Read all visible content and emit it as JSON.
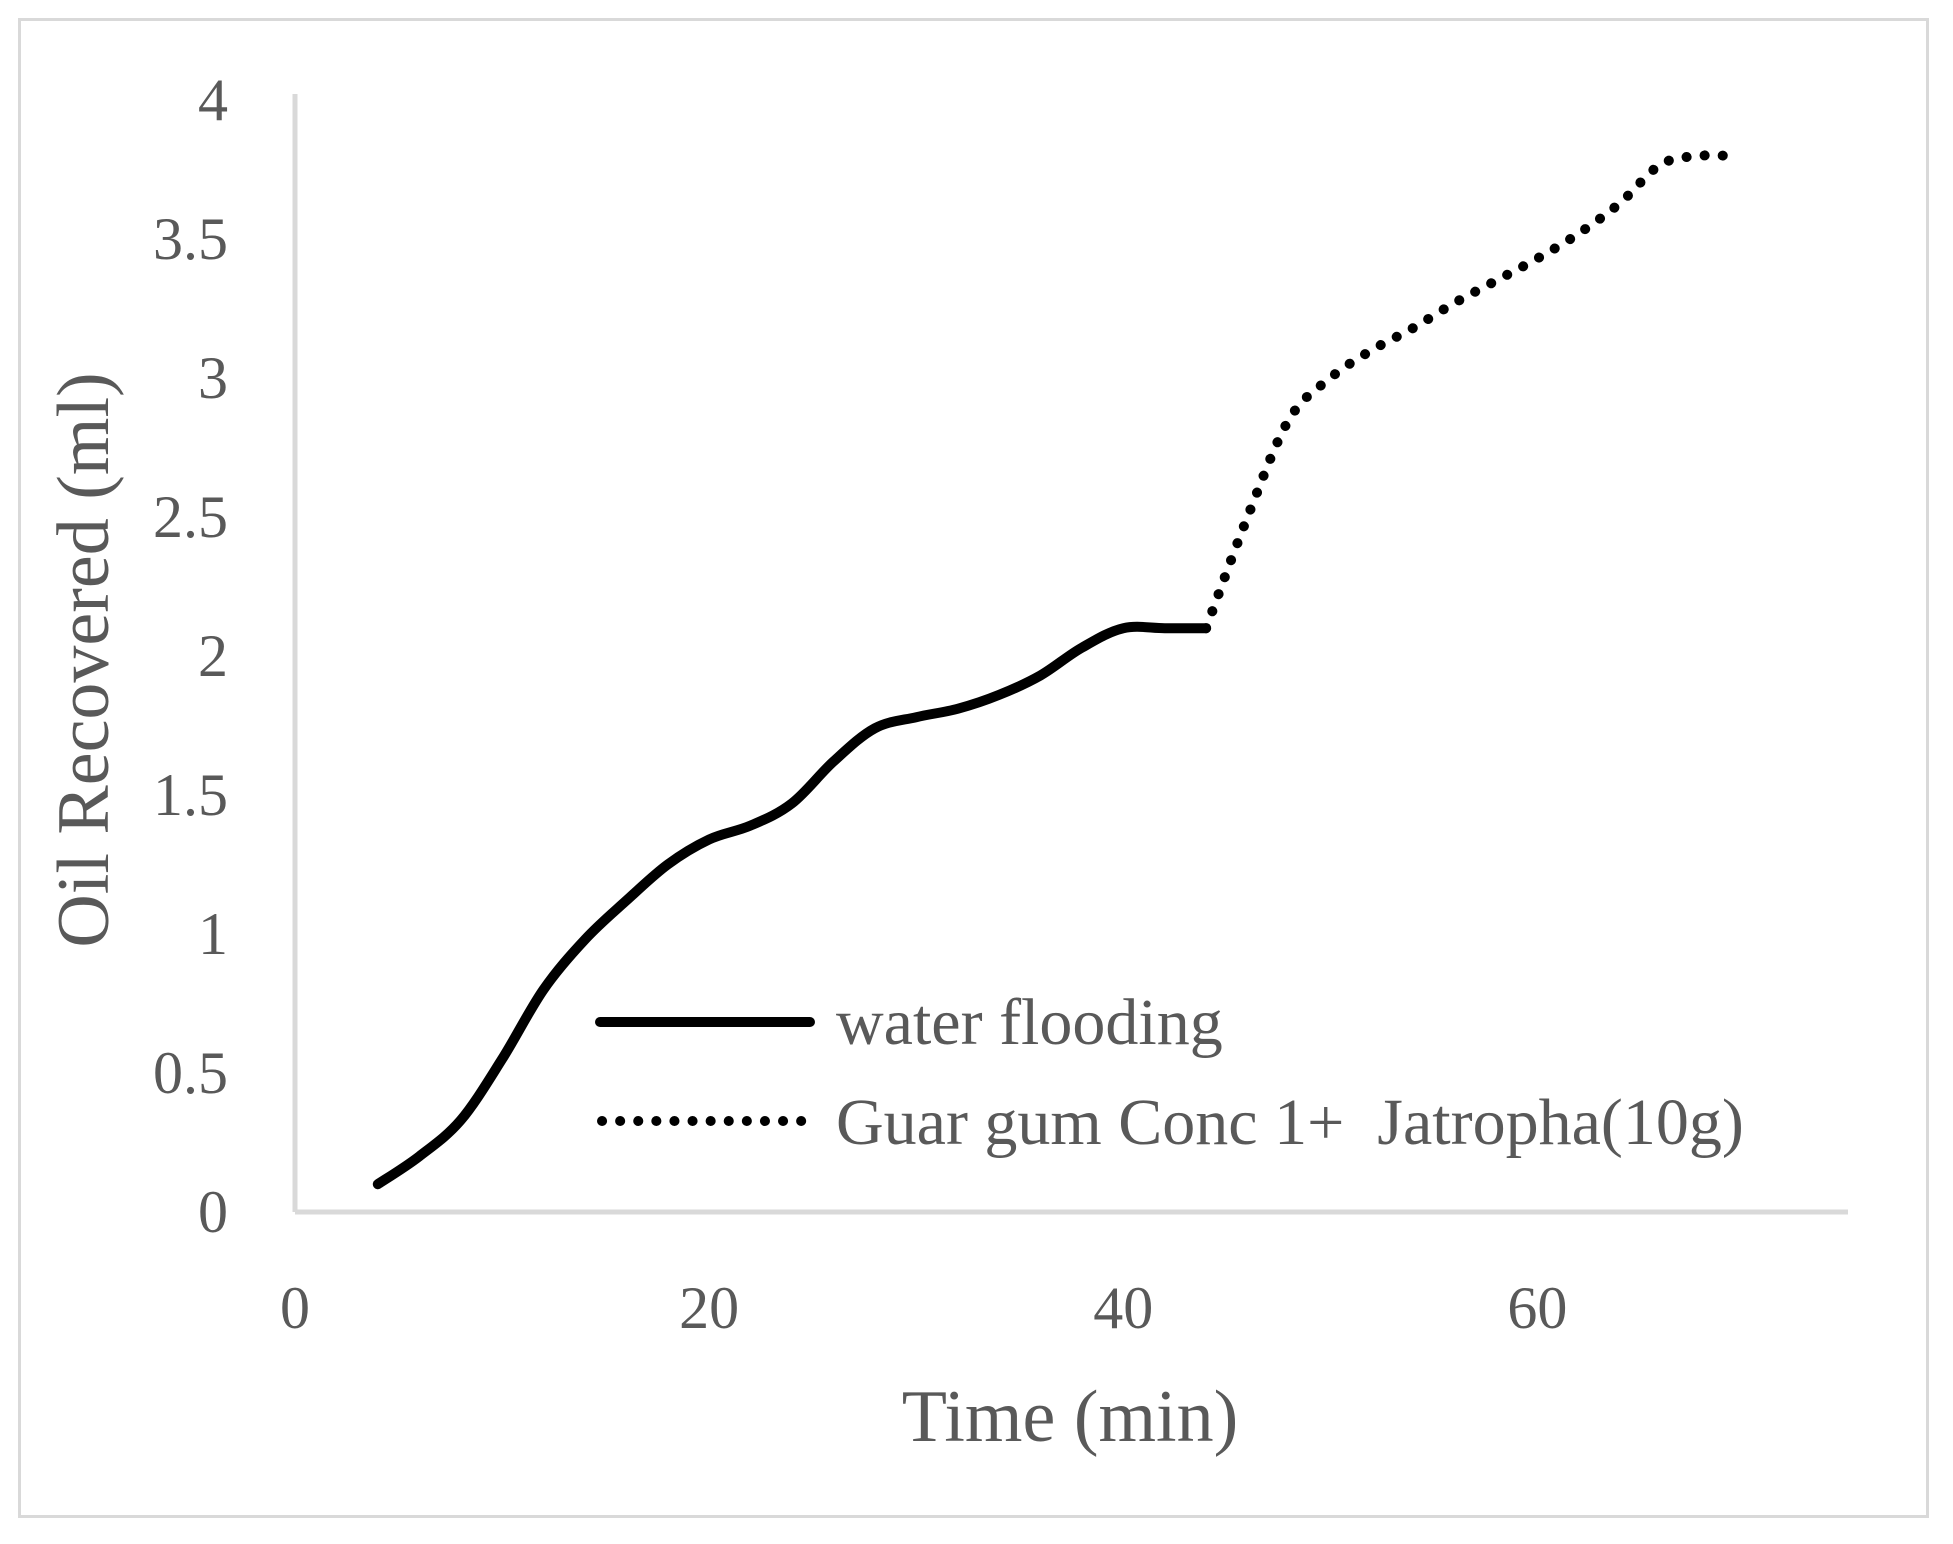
{
  "chart_data": {
    "type": "line",
    "xlabel": "Time (min)",
    "ylabel": "Oil Recovered (ml)",
    "xlim": [
      0,
      75
    ],
    "ylim": [
      0,
      4
    ],
    "x_ticks": [
      "0",
      "20",
      "40",
      "60"
    ],
    "x_tick_values": [
      0,
      20,
      40,
      60
    ],
    "y_ticks": [
      "0",
      "0.5",
      "1",
      "1.5",
      "2",
      "2.5",
      "3",
      "3.5",
      "4"
    ],
    "y_tick_values": [
      0,
      0.5,
      1,
      1.5,
      2,
      2.5,
      3,
      3.5,
      4
    ],
    "grid": false,
    "legend_position": "bottom-right",
    "series": [
      {
        "name": "water flooding",
        "style": "solid",
        "color": "#000000",
        "x": [
          4,
          6,
          8,
          10,
          12,
          14,
          16,
          18,
          20,
          22,
          24,
          26,
          28,
          30,
          32,
          34,
          36,
          38,
          40,
          42,
          44
        ],
        "y": [
          0.1,
          0.2,
          0.33,
          0.55,
          0.8,
          0.98,
          1.12,
          1.25,
          1.34,
          1.39,
          1.47,
          1.62,
          1.74,
          1.78,
          1.81,
          1.86,
          1.93,
          2.03,
          2.1,
          2.1,
          2.1
        ]
      },
      {
        "name": "Guar gum Conc 1+  Jatropha(10g)",
        "style": "dotted",
        "color": "#000000",
        "x": [
          44,
          46,
          48,
          50,
          52,
          54,
          56,
          58,
          60,
          62,
          64,
          66,
          68,
          69
        ],
        "y": [
          2.1,
          2.5,
          2.85,
          3.0,
          3.1,
          3.18,
          3.27,
          3.35,
          3.43,
          3.52,
          3.63,
          3.77,
          3.8,
          3.8
        ]
      }
    ]
  }
}
